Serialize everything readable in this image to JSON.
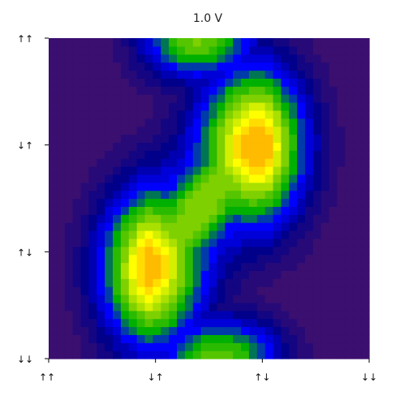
{
  "chart_data": {
    "type": "heatmap",
    "title": "1.0 V",
    "xlabel": "",
    "ylabel": "",
    "x_categories": [
      "↑↑",
      "↓↑",
      "↑↓",
      "↓↓"
    ],
    "y_categories": [
      "↓↓",
      "↑↓",
      "↓↑",
      "↑↑"
    ],
    "x_range": [
      0,
      3
    ],
    "y_range": [
      0,
      3
    ],
    "value_range": [
      0,
      1
    ],
    "colormap": [
      "#3b0f6f",
      "#00008b",
      "#0000ff",
      "#00b000",
      "#7fd000",
      "#ffff00",
      "#ff9900"
    ],
    "peak_values": [
      {
        "x": 0.9,
        "y": 0.85,
        "value": 1.0
      },
      {
        "x": 1.95,
        "y": 2.0,
        "value": 1.0
      }
    ],
    "grid": false,
    "legend": "none"
  }
}
